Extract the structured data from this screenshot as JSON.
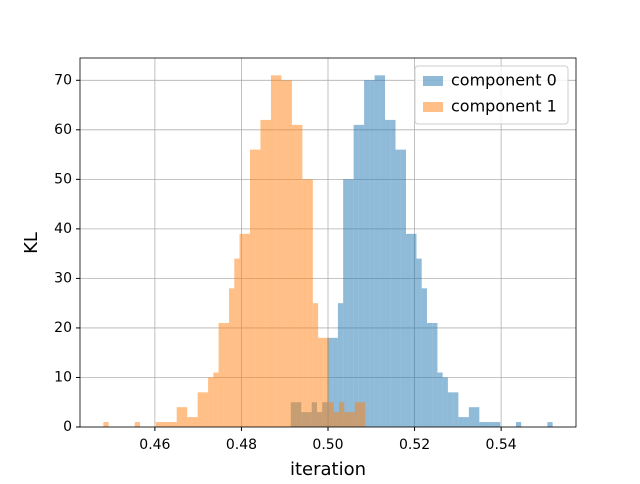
{
  "chart_data": {
    "type": "histogram",
    "xlabel": "iteration",
    "ylabel": "KL",
    "xlim": [
      0.4427,
      0.5573
    ],
    "ylim": [
      0,
      74.5
    ],
    "xticks": [
      {
        "value": 0.46,
        "label": "0.46"
      },
      {
        "value": 0.48,
        "label": "0.48"
      },
      {
        "value": 0.5,
        "label": "0.50"
      },
      {
        "value": 0.52,
        "label": "0.52"
      },
      {
        "value": 0.54,
        "label": "0.54"
      }
    ],
    "yticks": [
      0,
      10,
      20,
      30,
      40,
      50,
      60,
      70
    ],
    "grid": true,
    "legend": "upper right",
    "opacity": 0.5,
    "series": [
      {
        "name": "component 0",
        "color": "#1f77b4",
        "bins": [
          0.4914,
          0.49261,
          0.49382,
          0.49503,
          0.49624,
          0.49745,
          0.49866,
          0.49987,
          0.50108,
          0.50229,
          0.5035,
          0.50471,
          0.50592,
          0.50713,
          0.50834,
          0.50955,
          0.51076,
          0.51197,
          0.51318,
          0.51439,
          0.5156,
          0.51681,
          0.51802,
          0.51923,
          0.52044,
          0.52165,
          0.52286,
          0.52407,
          0.52528,
          0.52649,
          0.5277,
          0.52891,
          0.53012,
          0.53133,
          0.53254,
          0.53375,
          0.53496,
          0.53617,
          0.53738,
          0.53859,
          0.5398,
          0.54101,
          0.54222,
          0.54343,
          0.54464,
          0.54585,
          0.54706,
          0.54827,
          0.54948,
          0.55069,
          0.5519
        ],
        "values": [
          5,
          5,
          3,
          3,
          5,
          3,
          5,
          18,
          18,
          25,
          50,
          50,
          61,
          61,
          70,
          70,
          71,
          71,
          62,
          62,
          56,
          56,
          39,
          39,
          34,
          28,
          21,
          21,
          11,
          10,
          7,
          7,
          2,
          2,
          4,
          4,
          1,
          1,
          1,
          1,
          0,
          0,
          0,
          1,
          0,
          0,
          0,
          0,
          0,
          1
        ]
      },
      {
        "name": "component 1",
        "color": "#ff7f0e",
        "bins": [
          0.4481,
          0.44931,
          0.45052,
          0.45173,
          0.45294,
          0.45415,
          0.45536,
          0.45657,
          0.45778,
          0.45899,
          0.4602,
          0.46141,
          0.46262,
          0.46383,
          0.46504,
          0.46625,
          0.46746,
          0.46867,
          0.46988,
          0.47109,
          0.4723,
          0.47351,
          0.47472,
          0.47593,
          0.47714,
          0.47835,
          0.47956,
          0.48077,
          0.48198,
          0.48319,
          0.4844,
          0.48561,
          0.48682,
          0.48803,
          0.48924,
          0.49045,
          0.49166,
          0.49287,
          0.49408,
          0.49529,
          0.4965,
          0.49771,
          0.49892,
          0.50013,
          0.50134,
          0.50255,
          0.50376,
          0.50497,
          0.50618,
          0.50739,
          0.5086
        ],
        "values": [
          1,
          0,
          0,
          0,
          0,
          0,
          1,
          0,
          0,
          0,
          1,
          1,
          1,
          1,
          4,
          4,
          2,
          2,
          7,
          7,
          10,
          11,
          21,
          21,
          28,
          34,
          39,
          39,
          56,
          56,
          62,
          62,
          71,
          71,
          70,
          70,
          61,
          61,
          50,
          50,
          25,
          18,
          18,
          5,
          3,
          5,
          3,
          3,
          5,
          5
        ]
      }
    ]
  }
}
